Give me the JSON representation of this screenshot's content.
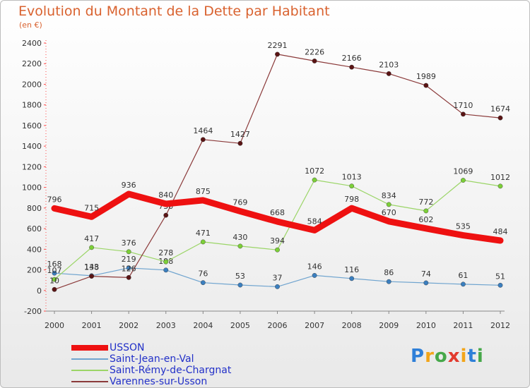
{
  "title": "Evolution du Montant de la Dette par Habitant",
  "subtitle": "(en €)",
  "logo": {
    "text": "Proxiti",
    "letters": [
      {
        "ch": "P",
        "color": "#2e7fd8"
      },
      {
        "ch": "r",
        "color": "#f2a51a"
      },
      {
        "ch": "o",
        "color": "#46a84a"
      },
      {
        "ch": "x",
        "color": "#e23b2e"
      },
      {
        "ch": "i",
        "color": "#f2a51a"
      },
      {
        "ch": "t",
        "color": "#2e7fd8"
      },
      {
        "ch": "i",
        "color": "#46a84a"
      }
    ]
  },
  "chart_data": {
    "type": "line",
    "x": [
      2000,
      2001,
      2002,
      2003,
      2004,
      2005,
      2006,
      2007,
      2008,
      2009,
      2010,
      2011,
      2012
    ],
    "ylim": [
      -200,
      2400
    ],
    "yticks": [
      -200,
      0,
      200,
      400,
      600,
      800,
      1000,
      1200,
      1400,
      1600,
      1800,
      2000,
      2200,
      2400
    ],
    "grid": false,
    "legend_position": "bottom-left",
    "series": [
      {
        "name": "USSON",
        "color": "#ee1111",
        "width": 9,
        "values": [
          796,
          715,
          936,
          840,
          875,
          769,
          668,
          584,
          798,
          670,
          602,
          535,
          484
        ]
      },
      {
        "name": "Saint-Jean-en-Val",
        "color": "#6fa4cf",
        "width": 1.2,
        "values": [
          168,
          143,
          219,
          198,
          76,
          53,
          37,
          146,
          116,
          86,
          74,
          61,
          51
        ]
      },
      {
        "name": "Saint-Rémy-de-Chargnat",
        "color": "#9bd567",
        "width": 1.2,
        "values": [
          107,
          417,
          376,
          278,
          471,
          430,
          394,
          1072,
          1013,
          834,
          772,
          1069,
          1012
        ]
      },
      {
        "name": "Varennes-sur-Usson",
        "color": "#8b3a3a",
        "width": 1.2,
        "values": [
          10,
          138,
          126,
          730,
          1464,
          1427,
          2291,
          2226,
          2166,
          2103,
          1989,
          1710,
          1674
        ]
      }
    ]
  }
}
